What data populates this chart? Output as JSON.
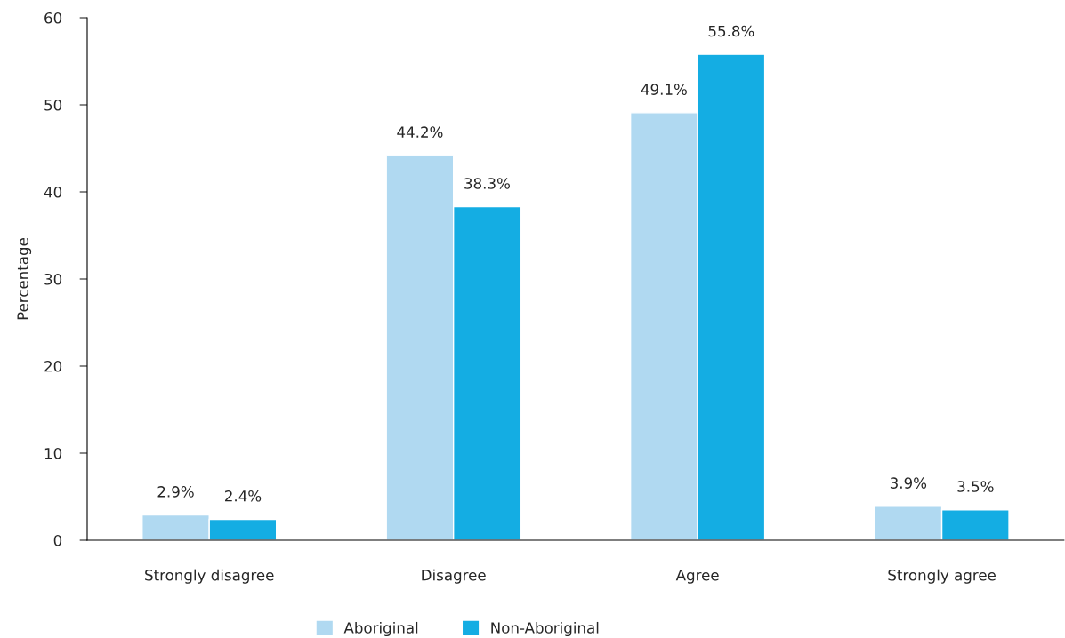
{
  "chart_data": {
    "type": "bar",
    "ylabel": "Percentage",
    "categories": [
      "Strongly disagree",
      "Disagree",
      "Agree",
      "Strongly agree"
    ],
    "series": [
      {
        "name": "Aboriginal",
        "color": "#b0d9f1",
        "values": [
          2.9,
          44.2,
          49.1,
          3.9
        ],
        "value_labels": [
          "2.9%",
          "44.2%",
          "49.1%",
          "3.9%"
        ]
      },
      {
        "name": "Non-Aboriginal",
        "color": "#14ade3",
        "values": [
          2.4,
          38.3,
          55.8,
          3.5
        ],
        "value_labels": [
          "2.4%",
          "38.3%",
          "55.8%",
          "3.5%"
        ]
      }
    ],
    "ylim": [
      0,
      60
    ],
    "yticks": [
      0,
      10,
      20,
      30,
      40,
      50,
      60
    ],
    "grid": false,
    "legend": "bottom"
  }
}
